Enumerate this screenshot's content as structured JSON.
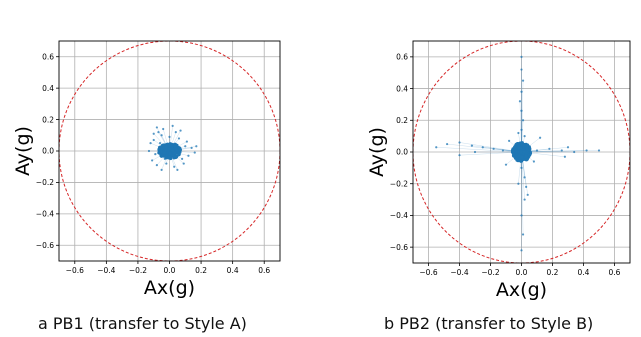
{
  "figure": {
    "captions": [
      "a PB1 (transfer to Style A)",
      "b PB2 (transfer to Style B)"
    ]
  },
  "chart_data": [
    {
      "type": "scatter",
      "title": "",
      "caption": "a PB1 (transfer to Style A)",
      "xlabel": "Ax(g)",
      "ylabel": "Ay(g)",
      "xlim": [
        -0.7,
        0.7
      ],
      "ylim": [
        -0.7,
        0.7
      ],
      "xticks": [
        -0.6,
        -0.4,
        -0.2,
        0.0,
        0.2,
        0.4,
        0.6
      ],
      "yticks": [
        -0.6,
        -0.4,
        -0.2,
        0.0,
        0.2,
        0.4,
        0.6
      ],
      "grid": true,
      "point_color": "#1f77b4",
      "circle": {
        "radius": 0.7,
        "color": "#d62728",
        "style": "dashed"
      },
      "core": {
        "cx": 0.0,
        "cy": 0.0,
        "rx": 0.07,
        "ry": 0.05
      },
      "points": [
        [
          -0.12,
          0.05
        ],
        [
          -0.1,
          0.11
        ],
        [
          -0.08,
          0.15
        ],
        [
          -0.05,
          0.1
        ],
        [
          -0.04,
          0.14
        ],
        [
          0.02,
          0.16
        ],
        [
          0.04,
          0.12
        ],
        [
          0.06,
          0.08
        ],
        [
          0.1,
          0.03
        ],
        [
          0.14,
          0.02
        ],
        [
          0.17,
          0.03
        ],
        [
          0.16,
          -0.01
        ],
        [
          0.12,
          -0.03
        ],
        [
          0.08,
          -0.05
        ],
        [
          0.05,
          -0.12
        ],
        [
          0.03,
          -0.1
        ],
        [
          -0.02,
          -0.08
        ],
        [
          -0.05,
          -0.12
        ],
        [
          -0.08,
          -0.09
        ],
        [
          -0.11,
          -0.06
        ],
        [
          -0.09,
          -0.02
        ],
        [
          -0.13,
          0.0
        ],
        [
          -0.1,
          0.07
        ],
        [
          0.07,
          0.13
        ],
        [
          0.0,
          0.09
        ],
        [
          -0.06,
          0.05
        ],
        [
          0.09,
          -0.08
        ],
        [
          -0.03,
          -0.05
        ],
        [
          0.11,
          0.06
        ],
        [
          -0.07,
          0.12
        ]
      ]
    },
    {
      "type": "scatter",
      "title": "",
      "caption": "b PB2 (transfer to Style B)",
      "xlabel": "Ax(g)",
      "ylabel": "Ay(g)",
      "xlim": [
        -0.7,
        0.7
      ],
      "ylim": [
        -0.7,
        0.7
      ],
      "xticks": [
        -0.6,
        -0.4,
        -0.2,
        0.0,
        0.2,
        0.4,
        0.6
      ],
      "yticks": [
        -0.6,
        -0.4,
        -0.2,
        0.0,
        0.2,
        0.4,
        0.6
      ],
      "grid": true,
      "point_color": "#1f77b4",
      "circle": {
        "radius": 0.7,
        "color": "#d62728",
        "style": "dashed"
      },
      "core": {
        "cx": 0.0,
        "cy": 0.0,
        "rx": 0.06,
        "ry": 0.06
      },
      "points": [
        [
          0.0,
          0.6
        ],
        [
          0.0,
          0.52
        ],
        [
          0.01,
          0.45
        ],
        [
          0.0,
          0.38
        ],
        [
          -0.01,
          0.32
        ],
        [
          0.0,
          0.26
        ],
        [
          0.01,
          0.2
        ],
        [
          0.0,
          0.14
        ],
        [
          0.02,
          0.1
        ],
        [
          -0.02,
          0.12
        ],
        [
          -0.55,
          0.03
        ],
        [
          -0.48,
          0.05
        ],
        [
          -0.4,
          0.06
        ],
        [
          -0.32,
          0.04
        ],
        [
          -0.25,
          0.03
        ],
        [
          -0.18,
          0.02
        ],
        [
          -0.12,
          0.01
        ],
        [
          0.1,
          0.01
        ],
        [
          0.18,
          0.02
        ],
        [
          0.26,
          0.01
        ],
        [
          0.34,
          0.0
        ],
        [
          0.42,
          0.01
        ],
        [
          0.5,
          0.01
        ],
        [
          0.28,
          -0.03
        ],
        [
          0.3,
          0.03
        ],
        [
          0.0,
          -0.1
        ],
        [
          0.02,
          -0.16
        ],
        [
          0.03,
          -0.22
        ],
        [
          0.04,
          -0.27
        ],
        [
          0.02,
          -0.3
        ],
        [
          -0.02,
          -0.2
        ],
        [
          0.0,
          -0.4
        ],
        [
          0.01,
          -0.52
        ],
        [
          0.0,
          -0.62
        ],
        [
          -0.08,
          0.07
        ],
        [
          0.08,
          -0.06
        ],
        [
          -0.1,
          -0.08
        ],
        [
          0.12,
          0.09
        ],
        [
          -0.3,
          0.0
        ],
        [
          -0.4,
          -0.02
        ]
      ]
    }
  ]
}
